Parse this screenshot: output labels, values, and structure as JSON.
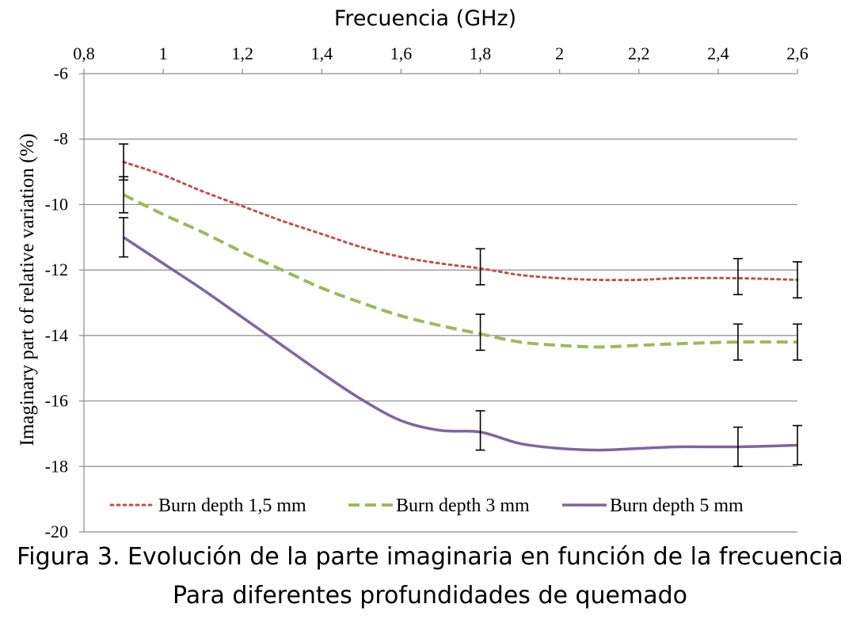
{
  "chart_data": {
    "type": "line",
    "xlabel": "Frecuencia (GHz)",
    "ylabel": "Imaginary part of relative variation (%)",
    "xlim": [
      0.8,
      2.6
    ],
    "ylim": [
      -20,
      -6
    ],
    "x_axis_position": "top",
    "xticks": [
      "0,8",
      "1",
      "1,2",
      "1,4",
      "1,6",
      "1,8",
      "2",
      "2,2",
      "2,4",
      "2,6"
    ],
    "xtick_values": [
      0.8,
      1.0,
      1.2,
      1.4,
      1.6,
      1.8,
      2.0,
      2.2,
      2.4,
      2.6
    ],
    "yticks": [
      "-6",
      "-8",
      "-10",
      "-12",
      "-14",
      "-16",
      "-18",
      "-20"
    ],
    "ytick_values": [
      -6,
      -8,
      -10,
      -12,
      -14,
      -16,
      -18,
      -20
    ],
    "grid": "horizontal",
    "legend_placement": "bottom",
    "x": [
      0.9,
      1.8,
      2.45,
      2.6
    ],
    "series": [
      {
        "name": "Burn depth 1,5 mm",
        "values": [
          -8.7,
          -11.9,
          -12.2,
          -12.3
        ],
        "error": [
          0.55,
          0.55,
          0.55,
          0.55
        ],
        "color": "#c0504d",
        "style": "dotted"
      },
      {
        "name": "Burn depth 3 mm",
        "values": [
          -9.7,
          -13.9,
          -14.2,
          -14.2
        ],
        "error": [
          0.55,
          0.55,
          0.55,
          0.55
        ],
        "color": "#9bbb59",
        "style": "dashed"
      },
      {
        "name": "Burn depth 5 mm",
        "values": [
          -11.0,
          -16.9,
          -17.4,
          -17.35
        ],
        "error": [
          0.6,
          0.6,
          0.6,
          0.6
        ],
        "color": "#8064a2",
        "style": "solid"
      }
    ],
    "curve_x": [
      0.9,
      1.0,
      1.1,
      1.2,
      1.3,
      1.4,
      1.5,
      1.6,
      1.7,
      1.8,
      1.9,
      2.0,
      2.1,
      2.2,
      2.3,
      2.45,
      2.6
    ],
    "curves": [
      [
        -8.7,
        -9.1,
        -9.6,
        -10.05,
        -10.5,
        -10.9,
        -11.3,
        -11.6,
        -11.8,
        -11.95,
        -12.15,
        -12.25,
        -12.3,
        -12.3,
        -12.25,
        -12.25,
        -12.3
      ],
      [
        -9.7,
        -10.3,
        -10.85,
        -11.45,
        -12.0,
        -12.55,
        -13.0,
        -13.4,
        -13.7,
        -13.95,
        -14.2,
        -14.3,
        -14.35,
        -14.3,
        -14.25,
        -14.2,
        -14.2
      ],
      [
        -11.0,
        -11.8,
        -12.6,
        -13.45,
        -14.3,
        -15.15,
        -15.95,
        -16.6,
        -16.9,
        -16.95,
        -17.3,
        -17.45,
        -17.5,
        -17.45,
        -17.4,
        -17.4,
        -17.35
      ]
    ]
  },
  "caption": {
    "line1": "Figura 3. Evolución de la parte imaginaria en función de la frecuencia",
    "line2": "Para diferentes profundidades de quemado"
  }
}
